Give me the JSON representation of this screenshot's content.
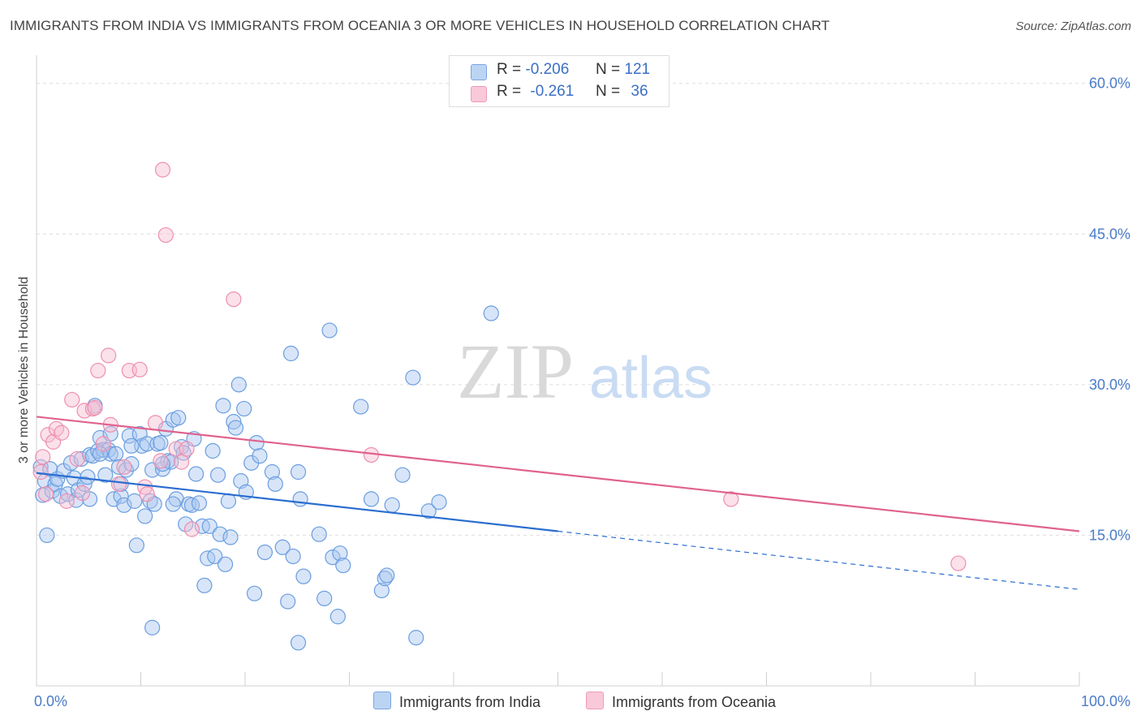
{
  "title": "IMMIGRANTS FROM INDIA VS IMMIGRANTS FROM OCEANIA 3 OR MORE VEHICLES IN HOUSEHOLD CORRELATION CHART",
  "source": "Source: ZipAtlas.com",
  "watermark": {
    "zip": "ZIP",
    "atlas": "atlas"
  },
  "legend": {
    "india": {
      "r_label": "R =",
      "r_value": "-0.206",
      "n_label": "N =",
      "n_value": "121"
    },
    "oceania": {
      "r_label": "R =",
      "r_value": "-0.261",
      "n_label": "N =",
      "n_value": "36"
    }
  },
  "bottom_legend": {
    "india": "Immigrants from India",
    "oceania": "Immigrants from Oceania"
  },
  "colors": {
    "india_fill": "#a8c6ef",
    "india_stroke": "#6a9ee0",
    "india_line": "#2a6dd0",
    "oceania_fill": "#f7bcd0",
    "oceania_stroke": "#ee8fb0",
    "oceania_line": "#e0628e",
    "tick_text": "#4a7bc8",
    "grid": "#dddddd"
  },
  "chart_data": {
    "type": "scatter",
    "title": "IMMIGRANTS FROM INDIA VS IMMIGRANTS FROM OCEANIA 3 OR MORE VEHICLES IN HOUSEHOLD CORRELATION CHART",
    "xlabel": "",
    "ylabel": "3 or more Vehicles in Household",
    "xlim": [
      0,
      100
    ],
    "ylim": [
      0,
      62
    ],
    "y_ticks": [
      15,
      30,
      45,
      60
    ],
    "y_tick_labels": [
      "15.0%",
      "30.0%",
      "45.0%",
      "60.0%"
    ],
    "x_tick_labels": [
      "0.0%",
      "100.0%"
    ],
    "grid": true,
    "series": [
      {
        "name": "Immigrants from India",
        "r": -0.206,
        "n": 121,
        "trend": {
          "x0": 0,
          "y0": 21.2,
          "x1": 50,
          "y1": 15.4,
          "dashed_to": 100,
          "y_dashed_end": 9.6
        },
        "points": [
          [
            0.4,
            21.8
          ],
          [
            0.6,
            19.0
          ],
          [
            0.8,
            20.4
          ],
          [
            1.0,
            15.0
          ],
          [
            1.3,
            21.6
          ],
          [
            1.5,
            19.4
          ],
          [
            1.8,
            20.1
          ],
          [
            2.0,
            20.6
          ],
          [
            2.3,
            18.9
          ],
          [
            2.6,
            21.4
          ],
          [
            3.0,
            19.1
          ],
          [
            3.3,
            22.2
          ],
          [
            3.6,
            20.7
          ],
          [
            3.8,
            18.5
          ],
          [
            4.0,
            19.5
          ],
          [
            4.3,
            22.6
          ],
          [
            4.6,
            20.1
          ],
          [
            4.9,
            20.8
          ],
          [
            5.1,
            23.0
          ],
          [
            5.4,
            22.9
          ],
          [
            5.6,
            27.9
          ],
          [
            5.9,
            23.4
          ],
          [
            6.1,
            24.7
          ],
          [
            6.4,
            23.5
          ],
          [
            6.6,
            21.0
          ],
          [
            6.9,
            23.5
          ],
          [
            7.1,
            23.1
          ],
          [
            7.4,
            18.6
          ],
          [
            7.6,
            23.1
          ],
          [
            7.9,
            21.8
          ],
          [
            8.1,
            18.9
          ],
          [
            8.4,
            18.0
          ],
          [
            8.6,
            21.5
          ],
          [
            8.9,
            24.9
          ],
          [
            9.1,
            22.1
          ],
          [
            9.4,
            18.4
          ],
          [
            9.6,
            14.0
          ],
          [
            9.9,
            25.1
          ],
          [
            10.1,
            23.9
          ],
          [
            10.4,
            16.9
          ],
          [
            10.6,
            24.1
          ],
          [
            10.9,
            18.4
          ],
          [
            11.1,
            21.5
          ],
          [
            11.3,
            18.1
          ],
          [
            11.6,
            24.1
          ],
          [
            11.9,
            24.2
          ],
          [
            12.1,
            21.6
          ],
          [
            12.4,
            25.6
          ],
          [
            12.6,
            22.4
          ],
          [
            12.9,
            22.3
          ],
          [
            13.1,
            26.5
          ],
          [
            13.4,
            18.6
          ],
          [
            13.6,
            26.7
          ],
          [
            13.9,
            23.8
          ],
          [
            14.1,
            23.2
          ],
          [
            14.3,
            16.1
          ],
          [
            14.6,
            18.1
          ],
          [
            14.9,
            18.0
          ],
          [
            15.1,
            24.6
          ],
          [
            15.3,
            21.1
          ],
          [
            15.6,
            18.2
          ],
          [
            15.9,
            15.9
          ],
          [
            16.1,
            10.0
          ],
          [
            16.4,
            12.7
          ],
          [
            16.6,
            15.9
          ],
          [
            16.9,
            23.4
          ],
          [
            17.1,
            12.9
          ],
          [
            17.4,
            21.0
          ],
          [
            17.6,
            15.1
          ],
          [
            17.9,
            27.9
          ],
          [
            18.1,
            12.1
          ],
          [
            18.4,
            18.4
          ],
          [
            18.6,
            14.8
          ],
          [
            18.9,
            26.3
          ],
          [
            19.1,
            25.7
          ],
          [
            19.4,
            30.0
          ],
          [
            19.6,
            20.4
          ],
          [
            19.9,
            27.6
          ],
          [
            20.1,
            19.3
          ],
          [
            20.6,
            22.2
          ],
          [
            20.9,
            9.2
          ],
          [
            21.1,
            24.2
          ],
          [
            21.4,
            22.9
          ],
          [
            21.9,
            13.3
          ],
          [
            22.6,
            21.3
          ],
          [
            22.9,
            20.1
          ],
          [
            23.6,
            13.8
          ],
          [
            24.1,
            8.4
          ],
          [
            24.4,
            33.1
          ],
          [
            24.6,
            12.9
          ],
          [
            25.1,
            21.3
          ],
          [
            25.3,
            18.6
          ],
          [
            25.6,
            10.9
          ],
          [
            27.1,
            15.1
          ],
          [
            27.6,
            8.7
          ],
          [
            28.1,
            35.4
          ],
          [
            28.4,
            12.8
          ],
          [
            28.9,
            6.9
          ],
          [
            29.1,
            13.2
          ],
          [
            29.4,
            12.0
          ],
          [
            31.1,
            27.8
          ],
          [
            32.1,
            18.6
          ],
          [
            33.1,
            9.5
          ],
          [
            33.4,
            10.7
          ],
          [
            33.6,
            11.0
          ],
          [
            34.1,
            18.0
          ],
          [
            35.1,
            21.0
          ],
          [
            36.1,
            30.7
          ],
          [
            36.4,
            4.8
          ],
          [
            37.6,
            17.4
          ],
          [
            38.6,
            18.3
          ],
          [
            43.6,
            37.1
          ],
          [
            11.1,
            5.8
          ],
          [
            25.1,
            4.3
          ],
          [
            7.1,
            25.1
          ],
          [
            6.1,
            23.1
          ],
          [
            9.1,
            23.9
          ],
          [
            12.1,
            22.1
          ],
          [
            13.1,
            18.1
          ],
          [
            5.1,
            18.6
          ],
          [
            8.1,
            20.1
          ]
        ]
      },
      {
        "name": "Immigrants from Oceania",
        "r": -0.261,
        "n": 36,
        "trend": {
          "x0": 0,
          "y0": 26.8,
          "x1": 100,
          "y1": 15.4
        },
        "points": [
          [
            0.4,
            21.3
          ],
          [
            0.6,
            22.8
          ],
          [
            0.9,
            19.1
          ],
          [
            1.1,
            25.0
          ],
          [
            1.6,
            24.3
          ],
          [
            1.9,
            25.6
          ],
          [
            2.4,
            25.2
          ],
          [
            2.9,
            18.4
          ],
          [
            3.4,
            28.5
          ],
          [
            3.9,
            22.6
          ],
          [
            4.4,
            19.2
          ],
          [
            4.6,
            27.4
          ],
          [
            5.4,
            27.6
          ],
          [
            5.6,
            27.7
          ],
          [
            5.9,
            31.4
          ],
          [
            6.4,
            24.1
          ],
          [
            6.9,
            32.9
          ],
          [
            7.1,
            26.0
          ],
          [
            7.9,
            20.1
          ],
          [
            8.4,
            21.8
          ],
          [
            8.9,
            31.4
          ],
          [
            9.9,
            31.5
          ],
          [
            10.4,
            19.8
          ],
          [
            10.6,
            19.1
          ],
          [
            11.4,
            26.2
          ],
          [
            11.9,
            22.4
          ],
          [
            12.1,
            51.4
          ],
          [
            12.4,
            44.9
          ],
          [
            13.4,
            23.6
          ],
          [
            13.9,
            22.3
          ],
          [
            14.4,
            23.6
          ],
          [
            14.9,
            15.6
          ],
          [
            18.9,
            38.5
          ],
          [
            32.1,
            23.0
          ],
          [
            66.6,
            18.6
          ],
          [
            88.4,
            12.2
          ]
        ]
      }
    ]
  }
}
